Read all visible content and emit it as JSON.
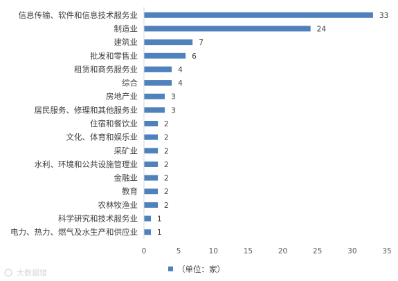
{
  "chart_data": {
    "type": "bar",
    "orientation": "horizontal",
    "categories": [
      "信息传输、软件和信息技术服务业",
      "制造业",
      "建筑业",
      "批发和零售业",
      "租赁和商务服务业",
      "综合",
      "房地产业",
      "居民服务、修理和其他服务业",
      "住宿和餐饮业",
      "文化、体育和娱乐业",
      "采矿业",
      "水利、环境和公共设施管理业",
      "金融业",
      "教育",
      "农林牧渔业",
      "科学研究和技术服务业",
      "电力、热力、燃气及水生产和供应业"
    ],
    "values": [
      33,
      24,
      7,
      6,
      4,
      4,
      3,
      3,
      2,
      2,
      2,
      2,
      2,
      2,
      2,
      1,
      1
    ],
    "xlim": [
      0,
      35
    ],
    "xticks": [
      0,
      5,
      10,
      15,
      20,
      25,
      30,
      35
    ],
    "legend": {
      "label": "（单位：家）",
      "placement": "bottom"
    },
    "grid": false,
    "bar_color": "#4f81bd"
  },
  "watermark": {
    "text": "大数据猎"
  }
}
